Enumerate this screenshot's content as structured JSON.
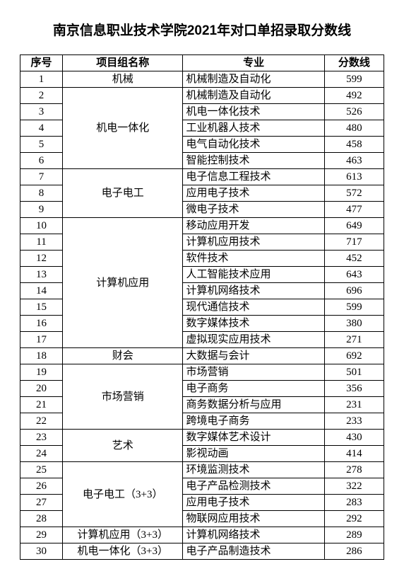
{
  "title": "南京信息职业技术学院2021年对口单招录取分数线",
  "columns": {
    "seq": "序号",
    "group": "项目组名称",
    "major": "专业",
    "score": "分数线"
  },
  "rows": [
    {
      "seq": 1,
      "group": "机械",
      "group_rowspan": 1,
      "major": "机械制造及自动化",
      "score": 599
    },
    {
      "seq": 2,
      "group": "机电一体化",
      "group_rowspan": 5,
      "major": "机械制造及自动化",
      "score": 492
    },
    {
      "seq": 3,
      "major": "机电一体化技术",
      "score": 526
    },
    {
      "seq": 4,
      "major": "工业机器人技术",
      "score": 480
    },
    {
      "seq": 5,
      "major": "电气自动化技术",
      "score": 458
    },
    {
      "seq": 6,
      "major": "智能控制技术",
      "score": 463
    },
    {
      "seq": 7,
      "group": "电子电工",
      "group_rowspan": 3,
      "major": "电子信息工程技术",
      "score": 613
    },
    {
      "seq": 8,
      "major": "应用电子技术",
      "score": 572
    },
    {
      "seq": 9,
      "major": "微电子技术",
      "score": 477
    },
    {
      "seq": 10,
      "group": "计算机应用",
      "group_rowspan": 8,
      "major": "移动应用开发",
      "score": 649
    },
    {
      "seq": 11,
      "major": "计算机应用技术",
      "score": 717
    },
    {
      "seq": 12,
      "major": "软件技术",
      "score": 452
    },
    {
      "seq": 13,
      "major": "人工智能技术应用",
      "score": 643
    },
    {
      "seq": 14,
      "major": "计算机网络技术",
      "score": 696
    },
    {
      "seq": 15,
      "major": "现代通信技术",
      "score": 599
    },
    {
      "seq": 16,
      "major": "数字媒体技术",
      "score": 380
    },
    {
      "seq": 17,
      "major": "虚拟现实应用技术",
      "score": 271
    },
    {
      "seq": 18,
      "group": "财会",
      "group_rowspan": 1,
      "major": "大数据与会计",
      "score": 692
    },
    {
      "seq": 19,
      "group": "市场营销",
      "group_rowspan": 4,
      "major": "市场营销",
      "score": 501
    },
    {
      "seq": 20,
      "major": "电子商务",
      "score": 356
    },
    {
      "seq": 21,
      "major": "商务数据分析与应用",
      "score": 231
    },
    {
      "seq": 22,
      "major": "跨境电子商务",
      "score": 233
    },
    {
      "seq": 23,
      "group": "艺术",
      "group_rowspan": 2,
      "major": "数字媒体艺术设计",
      "score": 430
    },
    {
      "seq": 24,
      "major": "影视动画",
      "score": 414
    },
    {
      "seq": 25,
      "group": "电子电工（3+3）",
      "group_rowspan": 4,
      "major": "环境监测技术",
      "score": 278
    },
    {
      "seq": 26,
      "major": "电子产品检测技术",
      "score": 322
    },
    {
      "seq": 27,
      "major": "应用电子技术",
      "score": 283
    },
    {
      "seq": 28,
      "major": "物联网应用技术",
      "score": 292
    },
    {
      "seq": 29,
      "group": "计算机应用（3+3）",
      "group_rowspan": 1,
      "major": "计算机网络技术",
      "score": 289
    },
    {
      "seq": 30,
      "group": "机电一体化（3+3）",
      "group_rowspan": 1,
      "major": "电子产品制造技术",
      "score": 286
    }
  ]
}
